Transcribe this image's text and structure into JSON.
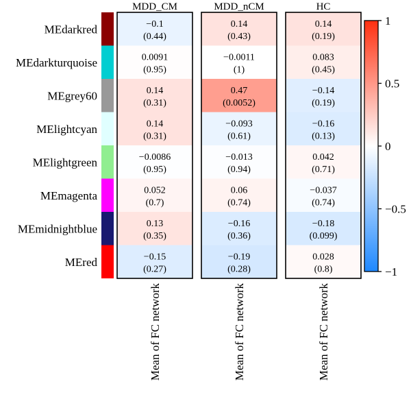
{
  "chart_data": {
    "type": "heatmap",
    "columns": [
      "MDD_CM",
      "MDD_nCM",
      "HC"
    ],
    "column_bottom_labels": [
      "Mean of FC network",
      "Mean of FC network",
      "Mean of FC network"
    ],
    "rows": [
      {
        "name": "MEdarkred",
        "color": "#8b0000"
      },
      {
        "name": "MEdarkturquoise",
        "color": "#00ced1"
      },
      {
        "name": "MEgrey60",
        "color": "#999999"
      },
      {
        "name": "MElightcyan",
        "color": "#e0ffff"
      },
      {
        "name": "MElightgreen",
        "color": "#90ee90"
      },
      {
        "name": "MEmagenta",
        "color": "#ff00ff"
      },
      {
        "name": "MEmidnightblue",
        "color": "#191970"
      },
      {
        "name": "MEred",
        "color": "#ff0000"
      }
    ],
    "values": [
      [
        -0.1,
        0.14,
        0.14
      ],
      [
        0.0091,
        -0.0011,
        0.083
      ],
      [
        0.14,
        0.47,
        -0.14
      ],
      [
        0.14,
        -0.093,
        -0.16
      ],
      [
        -0.0086,
        -0.013,
        0.042
      ],
      [
        0.052,
        0.06,
        -0.037
      ],
      [
        0.13,
        -0.16,
        -0.18
      ],
      [
        -0.15,
        -0.19,
        0.028
      ]
    ],
    "value_labels": [
      [
        "−0.1",
        "0.14",
        "0.14"
      ],
      [
        "0.0091",
        "−0.0011",
        "0.083"
      ],
      [
        "0.14",
        "0.47",
        "−0.14"
      ],
      [
        "0.14",
        "−0.093",
        "−0.16"
      ],
      [
        "−0.0086",
        "−0.013",
        "0.042"
      ],
      [
        "0.052",
        "0.06",
        "−0.037"
      ],
      [
        "0.13",
        "−0.16",
        "−0.18"
      ],
      [
        "−0.15",
        "−0.19",
        "0.028"
      ]
    ],
    "pvalue_labels": [
      [
        "(0.44)",
        "(0.43)",
        "(0.19)"
      ],
      [
        "(0.95)",
        "(1)",
        "(0.45)"
      ],
      [
        "(0.31)",
        "(0.0052)",
        "(0.19)"
      ],
      [
        "(0.31)",
        "(0.61)",
        "(0.13)"
      ],
      [
        "(0.95)",
        "(0.94)",
        "(0.71)"
      ],
      [
        "(0.7)",
        "(0.74)",
        "(0.74)"
      ],
      [
        "(0.35)",
        "(0.36)",
        "(0.099)"
      ],
      [
        "(0.27)",
        "(0.28)",
        "(0.8)"
      ]
    ],
    "colorbar": {
      "min": -1,
      "max": 1,
      "ticks": [
        1,
        0.5,
        0,
        -0.5,
        -1
      ],
      "tick_labels": [
        "1",
        "0.5",
        "0",
        "−0.5",
        "−1"
      ],
      "low_color": "#1e88ff",
      "mid_color": "#ffffff",
      "high_color": "#ff3010"
    }
  }
}
